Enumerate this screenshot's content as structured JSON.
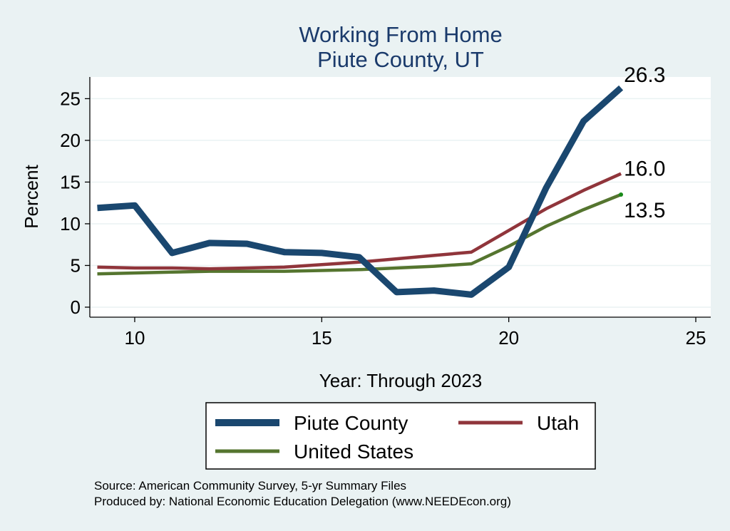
{
  "chart_data": {
    "type": "line",
    "title": [
      "Working From Home",
      "Piute County, UT"
    ],
    "xlabel": "Year: Through 2023",
    "ylabel": "Percent",
    "xlim": [
      8.8,
      25.4
    ],
    "ylim": [
      -1.2,
      27.6
    ],
    "xticks": [
      10,
      15,
      20,
      25
    ],
    "yticks": [
      0,
      5,
      10,
      15,
      20,
      25
    ],
    "grid": "horizontal",
    "legend_position": "bottom",
    "series": [
      {
        "name": "Piute County",
        "color": "#1a476f",
        "x": [
          9,
          10,
          11,
          12,
          13,
          14,
          15,
          16,
          17,
          18,
          19,
          20,
          21,
          22,
          23
        ],
        "values": [
          11.9,
          12.2,
          6.5,
          7.7,
          7.6,
          6.6,
          6.5,
          6.0,
          1.8,
          2.0,
          1.5,
          4.8,
          14.3,
          22.3,
          26.3
        ],
        "end_label": "26.3"
      },
      {
        "name": "Utah",
        "color": "#90353b",
        "x": [
          9,
          10,
          11,
          12,
          13,
          14,
          15,
          16,
          17,
          18,
          19,
          20,
          21,
          22,
          23
        ],
        "values": [
          4.8,
          4.7,
          4.7,
          4.6,
          4.7,
          4.8,
          5.1,
          5.4,
          5.8,
          6.2,
          6.6,
          9.2,
          11.8,
          14.0,
          16.0
        ],
        "end_label": "16.0"
      },
      {
        "name": "United States",
        "color": "#55752f",
        "x": [
          9,
          10,
          11,
          12,
          13,
          14,
          15,
          16,
          17,
          18,
          19,
          20,
          21,
          22,
          23
        ],
        "values": [
          4.0,
          4.1,
          4.2,
          4.3,
          4.3,
          4.3,
          4.4,
          4.5,
          4.7,
          4.9,
          5.2,
          7.3,
          9.7,
          11.7,
          13.5
        ],
        "end_label": "13.5"
      }
    ]
  },
  "notes": {
    "source": "Source: American Community Survey, 5-yr Summary Files",
    "producer": "Produced by: National Economic Education Delegation (www.NEEDEcon.org)"
  }
}
